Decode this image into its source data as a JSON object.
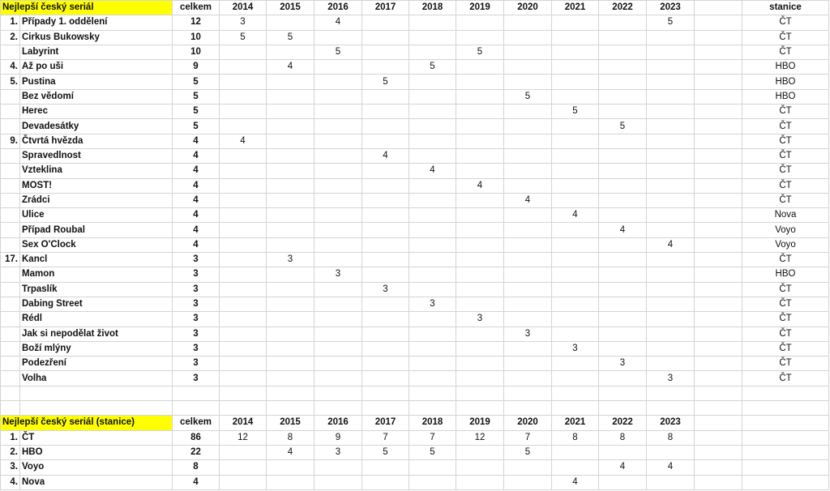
{
  "table1": {
    "title": "Nejlepší český seriál",
    "total_header": "celkem",
    "years": [
      "2014",
      "2015",
      "2016",
      "2017",
      "2018",
      "2019",
      "2020",
      "2021",
      "2022",
      "2023"
    ],
    "station_header": "stanice",
    "rows": [
      {
        "rank": "1.",
        "name": "Případy 1. oddělení",
        "total": "12",
        "values": [
          "3",
          "",
          "4",
          "",
          "",
          "",
          "",
          "",
          "",
          "5"
        ],
        "station": "ČT"
      },
      {
        "rank": "2.",
        "name": "Cirkus Bukowsky",
        "total": "10",
        "values": [
          "5",
          "5",
          "",
          "",
          "",
          "",
          "",
          "",
          "",
          ""
        ],
        "station": "ČT"
      },
      {
        "rank": "",
        "name": "Labyrint",
        "total": "10",
        "values": [
          "",
          "",
          "5",
          "",
          "",
          "5",
          "",
          "",
          "",
          ""
        ],
        "station": "ČT"
      },
      {
        "rank": "4.",
        "name": "Až po uši",
        "total": "9",
        "values": [
          "",
          "4",
          "",
          "",
          "5",
          "",
          "",
          "",
          "",
          ""
        ],
        "station": "HBO"
      },
      {
        "rank": "5.",
        "name": "Pustina",
        "total": "5",
        "values": [
          "",
          "",
          "",
          "5",
          "",
          "",
          "",
          "",
          "",
          ""
        ],
        "station": "HBO"
      },
      {
        "rank": "",
        "name": "Bez vědomí",
        "total": "5",
        "values": [
          "",
          "",
          "",
          "",
          "",
          "",
          "5",
          "",
          "",
          ""
        ],
        "station": "HBO"
      },
      {
        "rank": "",
        "name": "Herec",
        "total": "5",
        "values": [
          "",
          "",
          "",
          "",
          "",
          "",
          "",
          "5",
          "",
          ""
        ],
        "station": "ČT"
      },
      {
        "rank": "",
        "name": "Devadesátky",
        "total": "5",
        "values": [
          "",
          "",
          "",
          "",
          "",
          "",
          "",
          "",
          "5",
          ""
        ],
        "station": "ČT"
      },
      {
        "rank": "9.",
        "name": "Čtvrtá hvězda",
        "total": "4",
        "values": [
          "4",
          "",
          "",
          "",
          "",
          "",
          "",
          "",
          "",
          ""
        ],
        "station": "ČT"
      },
      {
        "rank": "",
        "name": "Spravedlnost",
        "total": "4",
        "values": [
          "",
          "",
          "",
          "4",
          "",
          "",
          "",
          "",
          "",
          ""
        ],
        "station": "ČT"
      },
      {
        "rank": "",
        "name": "Vzteklina",
        "total": "4",
        "values": [
          "",
          "",
          "",
          "",
          "4",
          "",
          "",
          "",
          "",
          ""
        ],
        "station": "ČT"
      },
      {
        "rank": "",
        "name": "MOST!",
        "total": "4",
        "values": [
          "",
          "",
          "",
          "",
          "",
          "4",
          "",
          "",
          "",
          ""
        ],
        "station": "ČT"
      },
      {
        "rank": "",
        "name": "Zrádci",
        "total": "4",
        "values": [
          "",
          "",
          "",
          "",
          "",
          "",
          "4",
          "",
          "",
          ""
        ],
        "station": "ČT"
      },
      {
        "rank": "",
        "name": "Ulice",
        "total": "4",
        "values": [
          "",
          "",
          "",
          "",
          "",
          "",
          "",
          "4",
          "",
          ""
        ],
        "station": "Nova"
      },
      {
        "rank": "",
        "name": "Případ Roubal",
        "total": "4",
        "values": [
          "",
          "",
          "",
          "",
          "",
          "",
          "",
          "",
          "4",
          ""
        ],
        "station": "Voyo"
      },
      {
        "rank": "",
        "name": "Sex O'Clock",
        "total": "4",
        "values": [
          "",
          "",
          "",
          "",
          "",
          "",
          "",
          "",
          "",
          "4"
        ],
        "station": "Voyo"
      },
      {
        "rank": "17.",
        "name": "Kancl",
        "total": "3",
        "values": [
          "",
          "3",
          "",
          "",
          "",
          "",
          "",
          "",
          "",
          ""
        ],
        "station": "ČT"
      },
      {
        "rank": "",
        "name": "Mamon",
        "total": "3",
        "values": [
          "",
          "",
          "3",
          "",
          "",
          "",
          "",
          "",
          "",
          ""
        ],
        "station": "HBO"
      },
      {
        "rank": "",
        "name": "Trpaslík",
        "total": "3",
        "values": [
          "",
          "",
          "",
          "3",
          "",
          "",
          "",
          "",
          "",
          ""
        ],
        "station": "ČT"
      },
      {
        "rank": "",
        "name": "Dabing Street",
        "total": "3",
        "values": [
          "",
          "",
          "",
          "",
          "3",
          "",
          "",
          "",
          "",
          ""
        ],
        "station": "ČT"
      },
      {
        "rank": "",
        "name": "Rédl",
        "total": "3",
        "values": [
          "",
          "",
          "",
          "",
          "",
          "3",
          "",
          "",
          "",
          ""
        ],
        "station": "ČT"
      },
      {
        "rank": "",
        "name": "Jak si nepodělat život",
        "total": "3",
        "values": [
          "",
          "",
          "",
          "",
          "",
          "",
          "3",
          "",
          "",
          ""
        ],
        "station": "ČT"
      },
      {
        "rank": "",
        "name": "Boží mlýny",
        "total": "3",
        "values": [
          "",
          "",
          "",
          "",
          "",
          "",
          "",
          "3",
          "",
          ""
        ],
        "station": "ČT"
      },
      {
        "rank": "",
        "name": "Podezření",
        "total": "3",
        "values": [
          "",
          "",
          "",
          "",
          "",
          "",
          "",
          "",
          "3",
          ""
        ],
        "station": "ČT"
      },
      {
        "rank": "",
        "name": "Volha",
        "total": "3",
        "values": [
          "",
          "",
          "",
          "",
          "",
          "",
          "",
          "",
          "",
          "3"
        ],
        "station": "ČT"
      }
    ]
  },
  "table2": {
    "title": "Nejlepší český seriál (stanice)",
    "total_header": "celkem",
    "years": [
      "2014",
      "2015",
      "2016",
      "2017",
      "2018",
      "2019",
      "2020",
      "2021",
      "2022",
      "2023"
    ],
    "rows": [
      {
        "rank": "1.",
        "name": "ČT",
        "total": "86",
        "values": [
          "12",
          "8",
          "9",
          "7",
          "7",
          "12",
          "7",
          "8",
          "8",
          "8"
        ]
      },
      {
        "rank": "2.",
        "name": "HBO",
        "total": "22",
        "values": [
          "",
          "4",
          "3",
          "5",
          "5",
          "",
          "5",
          "",
          "",
          ""
        ]
      },
      {
        "rank": "3.",
        "name": "Voyo",
        "total": "8",
        "values": [
          "",
          "",
          "",
          "",
          "",
          "",
          "",
          "",
          "4",
          "4"
        ]
      },
      {
        "rank": "4.",
        "name": "Nova",
        "total": "4",
        "values": [
          "",
          "",
          "",
          "",
          "",
          "",
          "",
          "4",
          "",
          ""
        ]
      }
    ]
  },
  "colors": {
    "highlight": "#ffff00",
    "grid": "#d4d4d4"
  }
}
